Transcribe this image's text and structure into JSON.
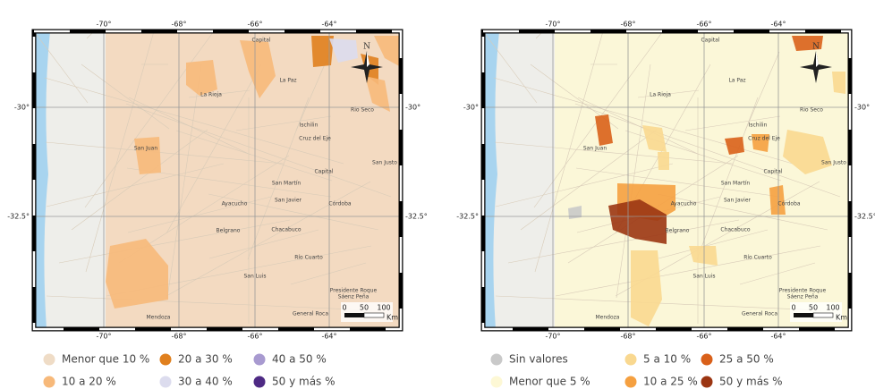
{
  "maps": [
    {
      "lon_labels": [
        "-70°",
        "-68°",
        "-66°",
        "-64°"
      ],
      "lat_labels": [
        "-30°",
        "-32.5°"
      ],
      "places": [
        "Capital",
        "La Paz",
        "La Rioja",
        "Rio Seco",
        "Ischilin",
        "Cruz del Eje",
        "San Juan",
        "Capital",
        "San Justo",
        "San Martín",
        "Ayacucho",
        "San Javier",
        "Córdoba",
        "Belgrano",
        "Chacabuco",
        "Río Cuarto",
        "San Luis",
        "Presidente Roque",
        "Sáenz Peña",
        "Mendoza",
        "General Roca"
      ],
      "north": "N",
      "scale": {
        "ticks": [
          "0",
          "50",
          "100"
        ],
        "unit": "Km"
      },
      "legend": [
        {
          "label": "Menor que 10 %",
          "color": "#efdcc6"
        },
        {
          "label": "10 a 20 %",
          "color": "#f7b97a"
        },
        {
          "label": "20 a 30 %",
          "color": "#e0801e"
        },
        {
          "label": "30 a 40 %",
          "color": "#dcdcee"
        },
        {
          "label": "40 a 50 %",
          "color": "#a89ad0"
        },
        {
          "label": "50 y más %",
          "color": "#4e2a84"
        }
      ]
    },
    {
      "lon_labels": [
        "-70°",
        "-68°",
        "-66°",
        "-64°"
      ],
      "lat_labels": [
        "-30°",
        "-32.5°"
      ],
      "places": [
        "Capital",
        "La Paz",
        "La Rioja",
        "Rio Seco",
        "Ischilin",
        "Cruz del Eje",
        "San Juan",
        "Capital",
        "San Justo",
        "San Martín",
        "Ayacucho",
        "San Javier",
        "Córdoba",
        "Belgrano",
        "Chacabuco",
        "Río Cuarto",
        "San Luis",
        "Presidente Roque",
        "Sáenz Peña",
        "Mendoza",
        "General Roca"
      ],
      "north": "N",
      "scale": {
        "ticks": [
          "0",
          "50",
          "100"
        ],
        "unit": "Km"
      },
      "legend": [
        {
          "label": "Sin valores",
          "color": "#c9c9c9"
        },
        {
          "label": "Menor que 5 %",
          "color": "#fdf8d5"
        },
        {
          "label": "5 a 10 %",
          "color": "#f9d890"
        },
        {
          "label": "10 a 25 %",
          "color": "#f5a040"
        },
        {
          "label": "25 a 50 %",
          "color": "#d9601a"
        },
        {
          "label": "50 y más %",
          "color": "#9b3512"
        }
      ]
    }
  ]
}
